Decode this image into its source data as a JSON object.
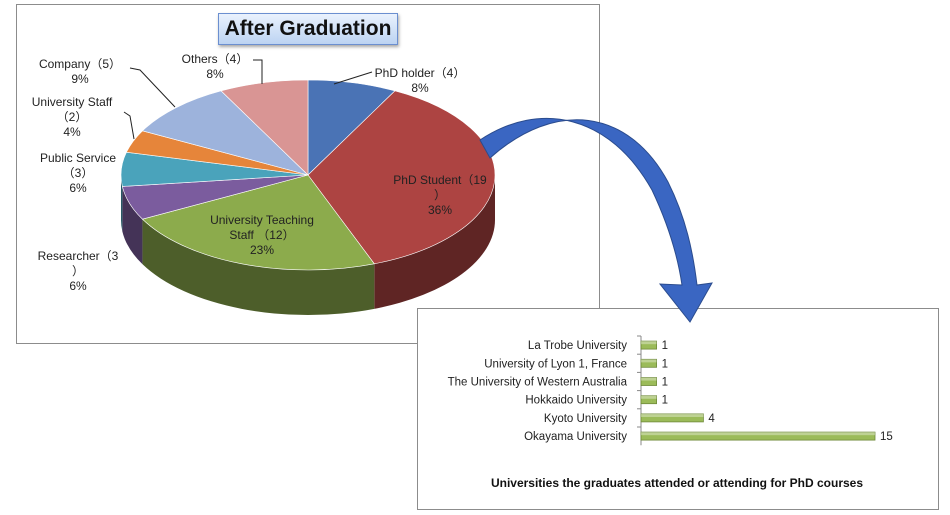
{
  "colors": {
    "phd_holder": "#4a73b5",
    "phd_student": "#ad4442",
    "university_teaching_staff": "#8cab4c",
    "researcher": "#7b5c9e",
    "public_service": "#4aa3bb",
    "university_staff": "#e6853a",
    "company": "#9db3dc",
    "others": "#d99594",
    "bar_fill": "#9bbb59",
    "arrow": "#3a66c2"
  },
  "chart_data": [
    {
      "type": "pie",
      "title": "After Graduation",
      "slices": [
        {
          "key": "phd_holder",
          "label": "PhD holder（4）",
          "count": 4,
          "percent": "8%"
        },
        {
          "key": "phd_student",
          "label": "PhD Student（19）",
          "count": 19,
          "percent": "36%"
        },
        {
          "key": "university_teaching_staff",
          "label": "University Teaching Staff（12）",
          "count": 12,
          "percent": "23%"
        },
        {
          "key": "researcher",
          "label": "Researcher（3）",
          "count": 3,
          "percent": "6%"
        },
        {
          "key": "public_service",
          "label": "Public Service（3）",
          "count": 3,
          "percent": "6%"
        },
        {
          "key": "university_staff",
          "label": "University Staff（2）",
          "count": 2,
          "percent": "4%"
        },
        {
          "key": "company",
          "label": "Company（5）",
          "count": 5,
          "percent": "9%"
        },
        {
          "key": "others",
          "label": "Others（4）",
          "count": 4,
          "percent": "8%"
        }
      ]
    },
    {
      "type": "bar",
      "orientation": "horizontal",
      "title": "Universities the graduates attended or attending for PhD courses",
      "categories": [
        "La Trobe University",
        "University of Lyon 1, France",
        "The University of Western Australia",
        "Hokkaido University",
        "Kyoto University",
        "Okayama University"
      ],
      "values": [
        1,
        1,
        1,
        1,
        4,
        15
      ]
    }
  ]
}
